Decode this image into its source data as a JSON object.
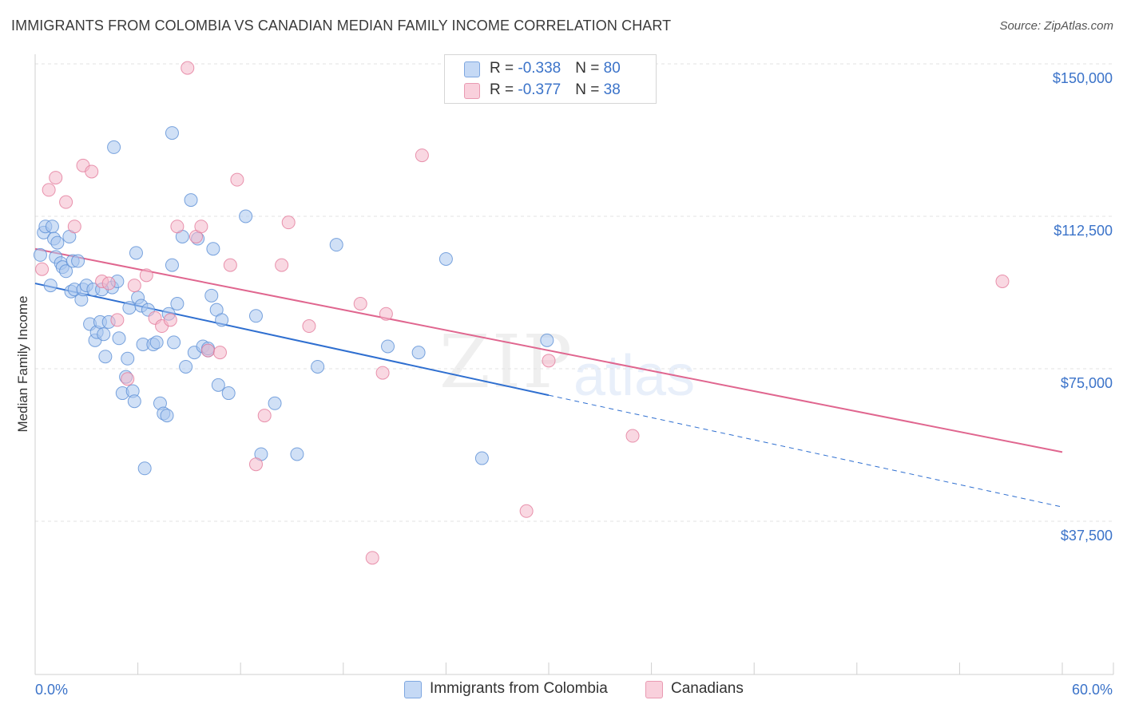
{
  "header": {
    "title": "IMMIGRANTS FROM COLOMBIA VS CANADIAN MEDIAN FAMILY INCOME CORRELATION CHART",
    "source": "Source: ZipAtlas.com"
  },
  "legend": {
    "rows": [
      {
        "r_label": "R = ",
        "r_value": "-0.338",
        "n_label": "N = ",
        "n_value": "80",
        "color": "#a9c6ef"
      },
      {
        "r_label": "R = ",
        "r_value": "-0.377",
        "n_label": "N = ",
        "n_value": "38",
        "color": "#f4b8cb"
      }
    ]
  },
  "watermark": {
    "zip": "ZIP",
    "atlas": "atlas"
  },
  "bottom_legend": {
    "series1": "Immigrants from Colombia",
    "series2": "Canadians"
  },
  "chart_data": {
    "type": "scatter",
    "title": "IMMIGRANTS FROM COLOMBIA VS CANADIAN MEDIAN FAMILY INCOME CORRELATION CHART",
    "xlabel": "",
    "ylabel": "Median Family Income",
    "xlim": [
      0,
      60
    ],
    "ylim": [
      0,
      152000
    ],
    "x_tick_labels": [
      "0.0%",
      "60.0%"
    ],
    "y_ticks": [
      37500,
      75000,
      112500,
      150000
    ],
    "y_tick_labels": [
      "$37,500",
      "$75,000",
      "$112,500",
      "$150,000"
    ],
    "grid": true,
    "legend_position": "top-center",
    "series": [
      {
        "name": "Immigrants from Colombia",
        "color": "#5b8fd6",
        "fill": "#a9c6ef",
        "trend": {
          "x0": 0,
          "y0": 96000,
          "x1": 30,
          "y1": 68500,
          "dash_to_x": 60,
          "dash_to_y": 41000
        },
        "points": [
          [
            0.3,
            103000
          ],
          [
            0.5,
            108500
          ],
          [
            0.6,
            110000
          ],
          [
            0.9,
            95500
          ],
          [
            1.0,
            110000
          ],
          [
            1.1,
            107000
          ],
          [
            1.2,
            102500
          ],
          [
            1.3,
            106000
          ],
          [
            1.5,
            101000
          ],
          [
            1.6,
            100000
          ],
          [
            1.8,
            99000
          ],
          [
            2.0,
            107500
          ],
          [
            2.2,
            101500
          ],
          [
            2.1,
            94000
          ],
          [
            2.3,
            94500
          ],
          [
            2.5,
            101500
          ],
          [
            2.7,
            92000
          ],
          [
            2.8,
            94500
          ],
          [
            3.0,
            95500
          ],
          [
            3.2,
            86000
          ],
          [
            3.4,
            94500
          ],
          [
            3.5,
            82000
          ],
          [
            3.6,
            84000
          ],
          [
            3.8,
            86500
          ],
          [
            4.0,
            83500
          ],
          [
            4.1,
            78000
          ],
          [
            4.3,
            86500
          ],
          [
            4.5,
            95000
          ],
          [
            4.6,
            129500
          ],
          [
            4.8,
            96500
          ],
          [
            4.9,
            82500
          ],
          [
            5.1,
            69000
          ],
          [
            5.3,
            73000
          ],
          [
            5.4,
            77500
          ],
          [
            5.5,
            90000
          ],
          [
            5.7,
            69500
          ],
          [
            5.8,
            67000
          ],
          [
            5.9,
            103500
          ],
          [
            6.0,
            92500
          ],
          [
            6.2,
            90500
          ],
          [
            6.3,
            81000
          ],
          [
            6.4,
            50500
          ],
          [
            6.6,
            89500
          ],
          [
            6.9,
            81000
          ],
          [
            7.1,
            81500
          ],
          [
            7.3,
            66500
          ],
          [
            7.5,
            64000
          ],
          [
            7.7,
            63500
          ],
          [
            7.8,
            88500
          ],
          [
            8.0,
            100500
          ],
          [
            8.1,
            81500
          ],
          [
            8.3,
            91000
          ],
          [
            8.6,
            107500
          ],
          [
            8.8,
            75500
          ],
          [
            9.1,
            116500
          ],
          [
            9.5,
            107000
          ],
          [
            9.3,
            79000
          ],
          [
            9.8,
            80500
          ],
          [
            10.1,
            79500
          ],
          [
            10.4,
            104500
          ],
          [
            10.3,
            93000
          ],
          [
            10.6,
            89500
          ],
          [
            10.7,
            71000
          ],
          [
            10.9,
            87000
          ],
          [
            11.3,
            69000
          ],
          [
            12.3,
            112500
          ],
          [
            12.9,
            88000
          ],
          [
            13.2,
            54000
          ],
          [
            14.0,
            66500
          ],
          [
            15.3,
            54000
          ],
          [
            16.5,
            75500
          ],
          [
            17.6,
            105500
          ],
          [
            20.6,
            80500
          ],
          [
            22.4,
            79000
          ],
          [
            24.0,
            102000
          ],
          [
            26.1,
            53000
          ],
          [
            29.9,
            82000
          ],
          [
            8.0,
            133000
          ],
          [
            3.9,
            94500
          ],
          [
            10.1,
            80000
          ]
        ]
      },
      {
        "name": "Canadians",
        "color": "#e47a9b",
        "fill": "#f4b8cb",
        "trend": {
          "x0": 0,
          "y0": 104500,
          "x1": 60,
          "y1": 54500
        },
        "points": [
          [
            0.4,
            99500
          ],
          [
            0.8,
            119000
          ],
          [
            1.2,
            122000
          ],
          [
            1.8,
            116000
          ],
          [
            2.3,
            110000
          ],
          [
            2.8,
            125000
          ],
          [
            3.3,
            123500
          ],
          [
            3.9,
            96500
          ],
          [
            4.3,
            96000
          ],
          [
            4.8,
            87000
          ],
          [
            5.4,
            72500
          ],
          [
            5.8,
            95500
          ],
          [
            6.5,
            98000
          ],
          [
            7.0,
            87500
          ],
          [
            7.4,
            85500
          ],
          [
            7.9,
            87000
          ],
          [
            8.3,
            110000
          ],
          [
            8.9,
            149000
          ],
          [
            9.4,
            107500
          ],
          [
            9.7,
            110000
          ],
          [
            10.1,
            79500
          ],
          [
            10.8,
            79000
          ],
          [
            11.4,
            100500
          ],
          [
            11.8,
            121500
          ],
          [
            12.9,
            51500
          ],
          [
            13.4,
            63500
          ],
          [
            14.4,
            100500
          ],
          [
            14.8,
            111000
          ],
          [
            16.0,
            85500
          ],
          [
            19.0,
            91000
          ],
          [
            20.3,
            74000
          ],
          [
            20.5,
            88500
          ],
          [
            22.6,
            127500
          ],
          [
            28.7,
            40000
          ],
          [
            30.0,
            77000
          ],
          [
            34.9,
            58500
          ],
          [
            56.5,
            96500
          ],
          [
            19.7,
            28500
          ]
        ]
      }
    ]
  }
}
